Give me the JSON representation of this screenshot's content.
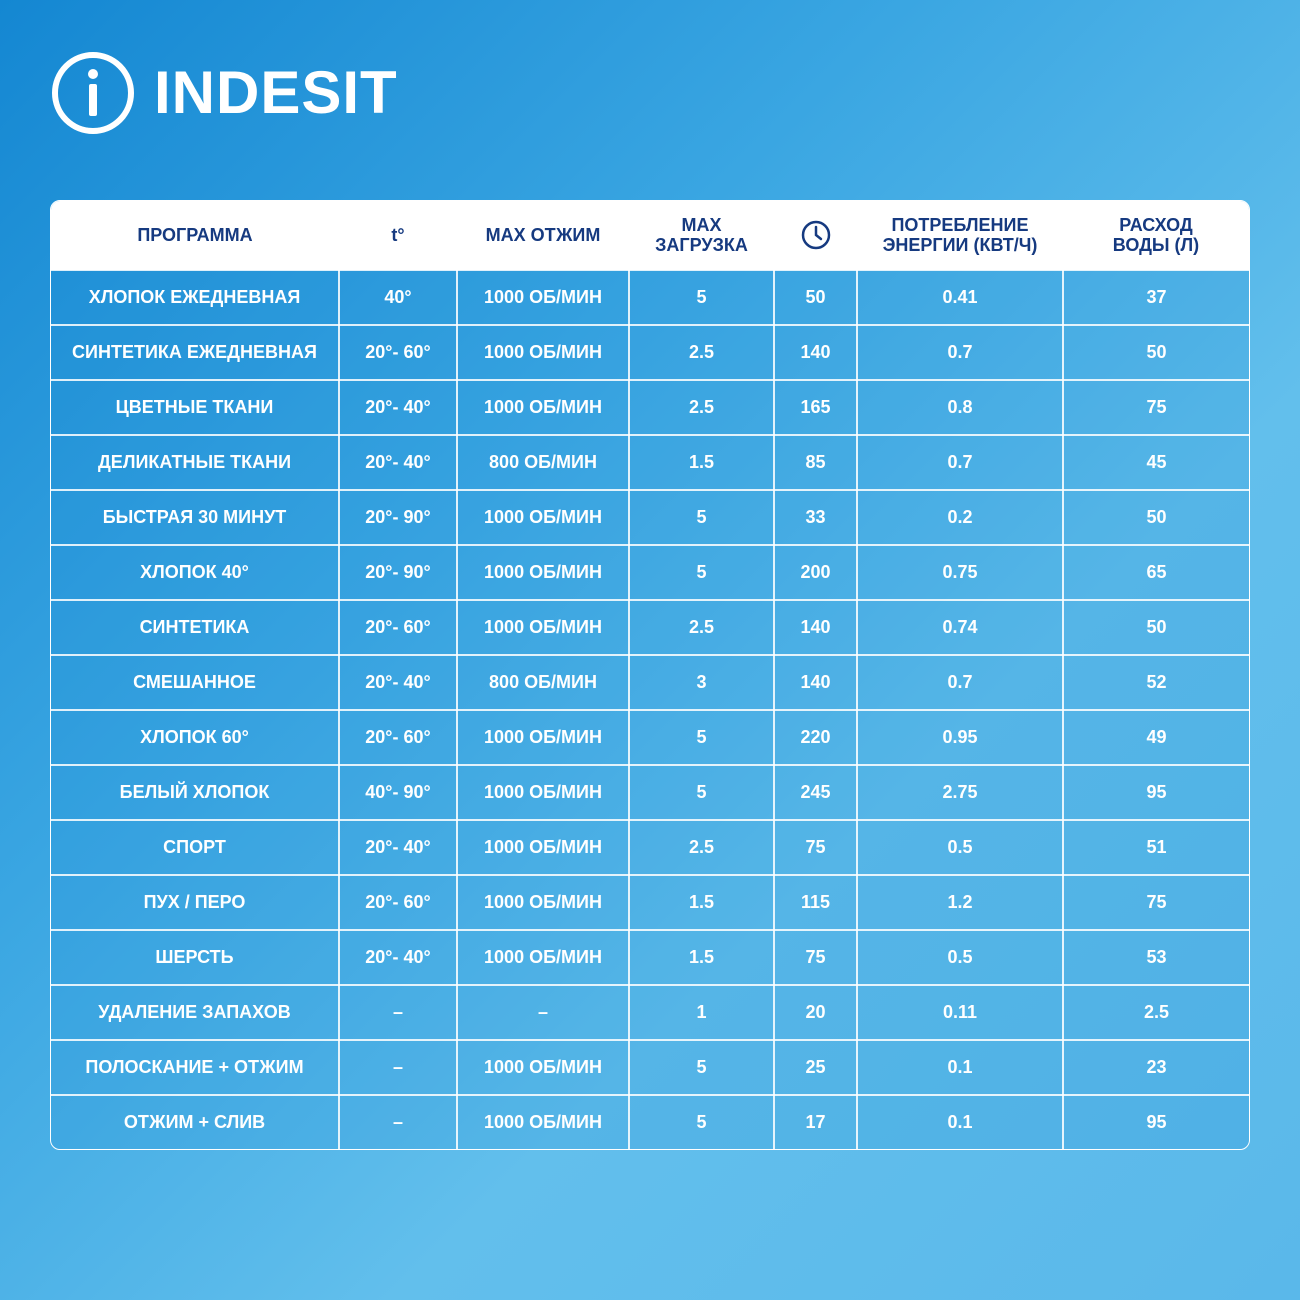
{
  "brand": "INDESIT",
  "table": {
    "header": [
      [
        "ПРОГРАММА"
      ],
      [
        "t°"
      ],
      [
        "MAX  ОТЖИМ"
      ],
      [
        "MAX",
        "ЗАГРУЗКА"
      ],
      null,
      [
        "ПОТРЕБЛЕНИЕ",
        "ЭНЕРГИИ (КВТ/Ч)"
      ],
      [
        "РАСХОД",
        "ВОДЫ (Л)"
      ]
    ],
    "rows": [
      [
        "ХЛОПОК ЕЖЕДНЕВНАЯ",
        "40°",
        "1000 ОБ/МИН",
        "5",
        "50",
        "0.41",
        "37"
      ],
      [
        "СИНТЕТИКА ЕЖЕДНЕВНАЯ",
        "20°- 60°",
        "1000 ОБ/МИН",
        "2.5",
        "140",
        "0.7",
        "50"
      ],
      [
        "ЦВЕТНЫЕ ТКАНИ",
        "20°- 40°",
        "1000 ОБ/МИН",
        "2.5",
        "165",
        "0.8",
        "75"
      ],
      [
        "ДЕЛИКАТНЫЕ ТКАНИ",
        "20°- 40°",
        "800 ОБ/МИН",
        "1.5",
        "85",
        "0.7",
        "45"
      ],
      [
        "БЫСТРАЯ 30 МИНУТ",
        "20°- 90°",
        "1000 ОБ/МИН",
        "5",
        "33",
        "0.2",
        "50"
      ],
      [
        "ХЛОПОК 40°",
        "20°- 90°",
        "1000 ОБ/МИН",
        "5",
        "200",
        "0.75",
        "65"
      ],
      [
        "СИНТЕТИКА",
        "20°- 60°",
        "1000 ОБ/МИН",
        "2.5",
        "140",
        "0.74",
        "50"
      ],
      [
        "СМЕШАННОЕ",
        "20°- 40°",
        "800 ОБ/МИН",
        "3",
        "140",
        "0.7",
        "52"
      ],
      [
        "ХЛОПОК 60°",
        "20°- 60°",
        "1000 ОБ/МИН",
        "5",
        "220",
        "0.95",
        "49"
      ],
      [
        "БЕЛЫЙ ХЛОПОК",
        "40°- 90°",
        "1000 ОБ/МИН",
        "5",
        "245",
        "2.75",
        "95"
      ],
      [
        "СПОРТ",
        "20°- 40°",
        "1000 ОБ/МИН",
        "2.5",
        "75",
        "0.5",
        "51"
      ],
      [
        "ПУХ / ПЕРО",
        "20°- 60°",
        "1000 ОБ/МИН",
        "1.5",
        "115",
        "1.2",
        "75"
      ],
      [
        "ШЕРСТЬ",
        "20°- 40°",
        "1000 ОБ/МИН",
        "1.5",
        "75",
        "0.5",
        "53"
      ],
      [
        "УДАЛЕНИЕ ЗАПАХОВ",
        "–",
        "–",
        "1",
        "20",
        "0.11",
        "2.5"
      ],
      [
        "ПОЛОСКАНИЕ + ОТЖИМ",
        "–",
        "1000 ОБ/МИН",
        "5",
        "25",
        "0.1",
        "23"
      ],
      [
        "ОТЖИМ + СЛИВ",
        "–",
        "1000 ОБ/МИН",
        "5",
        "17",
        "0.1",
        "95"
      ]
    ]
  }
}
